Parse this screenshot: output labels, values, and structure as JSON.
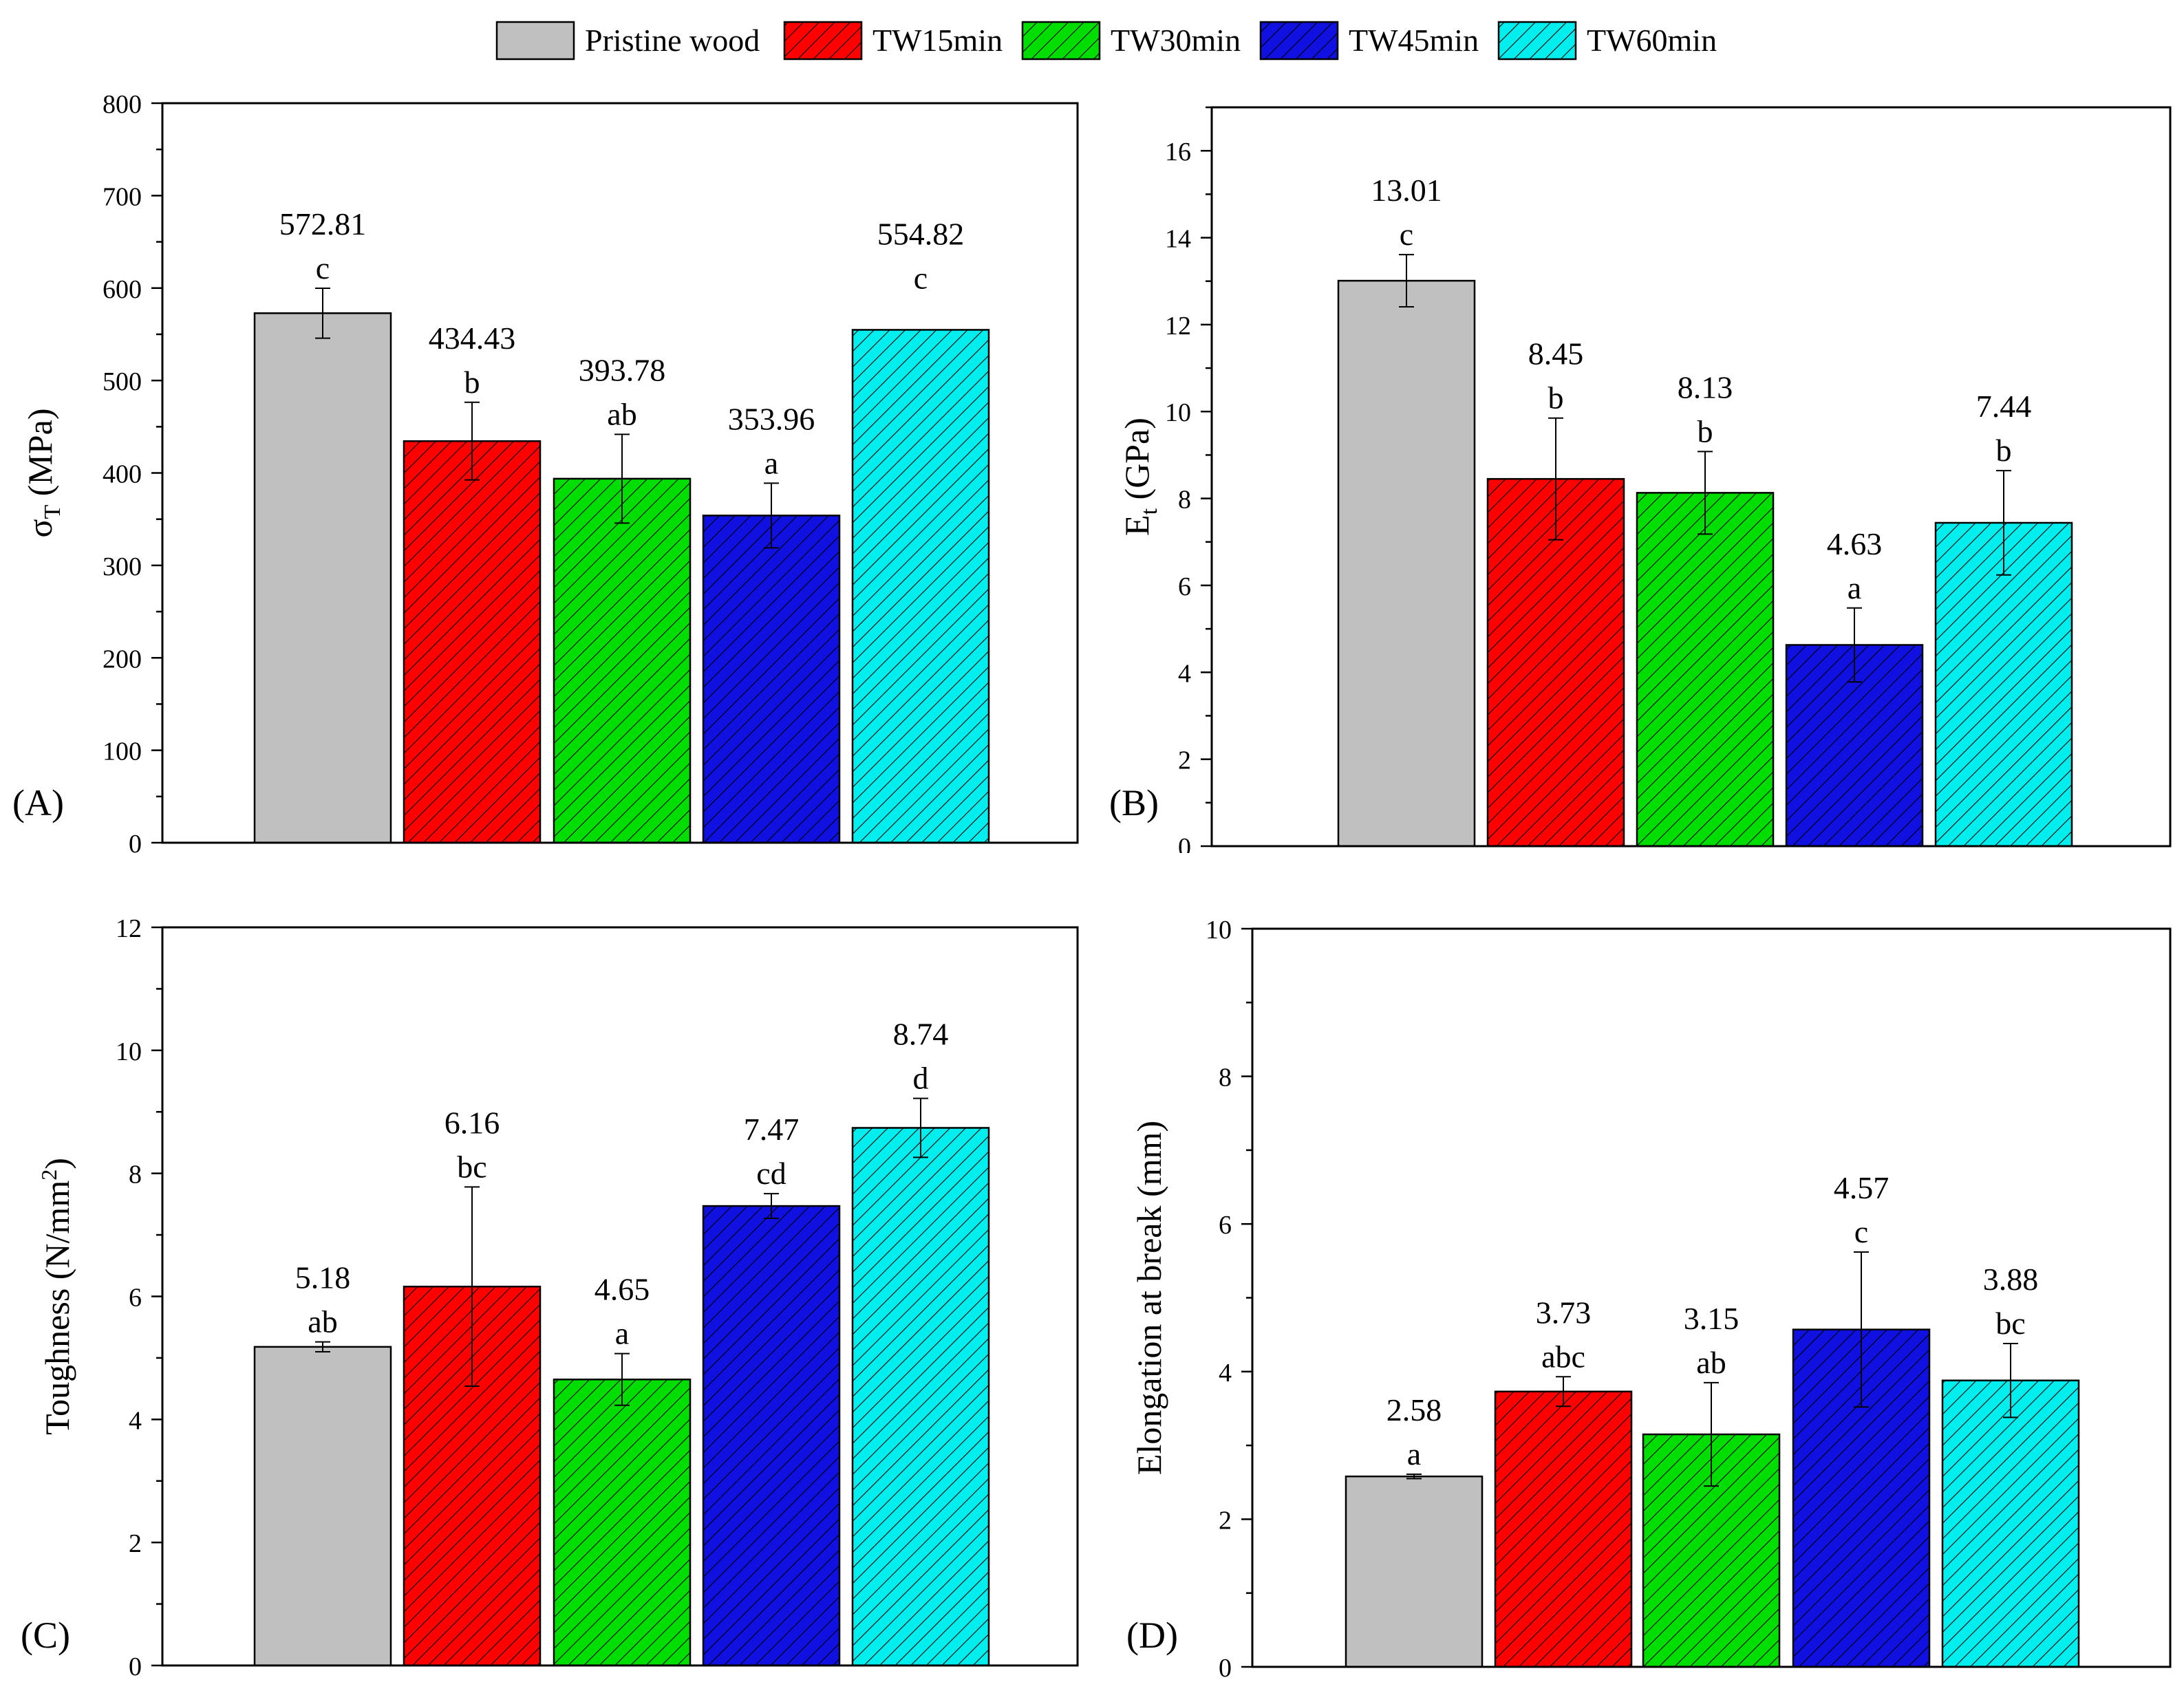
{
  "legend": {
    "items": [
      {
        "name": "Pristine wood",
        "color": "#c0c0c0",
        "hatch": false
      },
      {
        "name": "TW15min",
        "color": "#ff0000",
        "hatch": true
      },
      {
        "name": "TW30min",
        "color": "#00dd00",
        "hatch": true
      },
      {
        "name": "TW45min",
        "color": "#1010e0",
        "hatch": true
      },
      {
        "name": "TW60min",
        "color": "#00eeee",
        "hatch": true
      }
    ]
  },
  "chart_data": [
    {
      "panel": "(A)",
      "type": "bar",
      "ylabel": "σT (MPa)",
      "ylabel_main": "σ",
      "ylabel_sub": "T",
      "ylabel_tail": " (MPa)",
      "ylim": [
        0,
        800
      ],
      "yticks": [
        0,
        100,
        200,
        300,
        400,
        500,
        600,
        700,
        800
      ],
      "categories": [
        "Pristine wood",
        "TW15min",
        "TW30min",
        "TW45min",
        "TW60min"
      ],
      "values": [
        572.81,
        434.43,
        393.78,
        353.96,
        554.82
      ],
      "errors": [
        27,
        42,
        48,
        35,
        0
      ],
      "value_labels": [
        "572.81",
        "434.43",
        "393.78",
        "353.96",
        "554.82"
      ],
      "letters": [
        "c",
        "b",
        "ab",
        "a",
        "c"
      ]
    },
    {
      "panel": "(B)",
      "type": "bar",
      "ylabel": "Et (GPa)",
      "ylabel_main": "E",
      "ylabel_sub": "t",
      "ylabel_tail": " (GPa)",
      "ylim": [
        0,
        17
      ],
      "yticks": [
        0,
        2,
        4,
        6,
        8,
        10,
        12,
        14,
        16
      ],
      "categories": [
        "Pristine wood",
        "TW15min",
        "TW30min",
        "TW45min",
        "TW60min"
      ],
      "values": [
        13.01,
        8.45,
        8.13,
        4.63,
        7.44
      ],
      "errors": [
        0.6,
        1.4,
        0.95,
        0.85,
        1.2
      ],
      "value_labels": [
        "13.01",
        "8.45",
        "8.13",
        "4.63",
        "7.44"
      ],
      "letters": [
        "c",
        "b",
        "b",
        "a",
        "b"
      ]
    },
    {
      "panel": "(C)",
      "type": "bar",
      "ylabel": "Toughness (N/mm2)",
      "ylabel_main": "Toughness (N/mm",
      "ylabel_sup": "2",
      "ylabel_tail": ")",
      "ylim": [
        0,
        12
      ],
      "yticks": [
        0,
        2,
        4,
        6,
        8,
        10,
        12
      ],
      "categories": [
        "Pristine wood",
        "TW15min",
        "TW30min",
        "TW45min",
        "TW60min"
      ],
      "values": [
        5.18,
        6.16,
        4.65,
        7.47,
        8.74
      ],
      "errors": [
        0.08,
        1.62,
        0.42,
        0.2,
        0.48
      ],
      "value_labels": [
        "5.18",
        "6.16",
        "4.65",
        "7.47",
        "8.74"
      ],
      "letters": [
        "ab",
        "bc",
        "a",
        "cd",
        "d"
      ]
    },
    {
      "panel": "(D)",
      "type": "bar",
      "ylabel": "Elongation at break (mm)",
      "ylim": [
        0,
        10
      ],
      "yticks": [
        0,
        2,
        4,
        6,
        8,
        10
      ],
      "categories": [
        "Pristine wood",
        "TW15min",
        "TW30min",
        "TW45min",
        "TW60min"
      ],
      "values": [
        2.58,
        3.73,
        3.15,
        4.57,
        3.88
      ],
      "errors": [
        0.03,
        0.2,
        0.7,
        1.05,
        0.5
      ],
      "value_labels": [
        "2.58",
        "3.73",
        "3.15",
        "4.57",
        "3.88"
      ],
      "letters": [
        "a",
        "abc",
        "ab",
        "c",
        "bc"
      ]
    }
  ]
}
